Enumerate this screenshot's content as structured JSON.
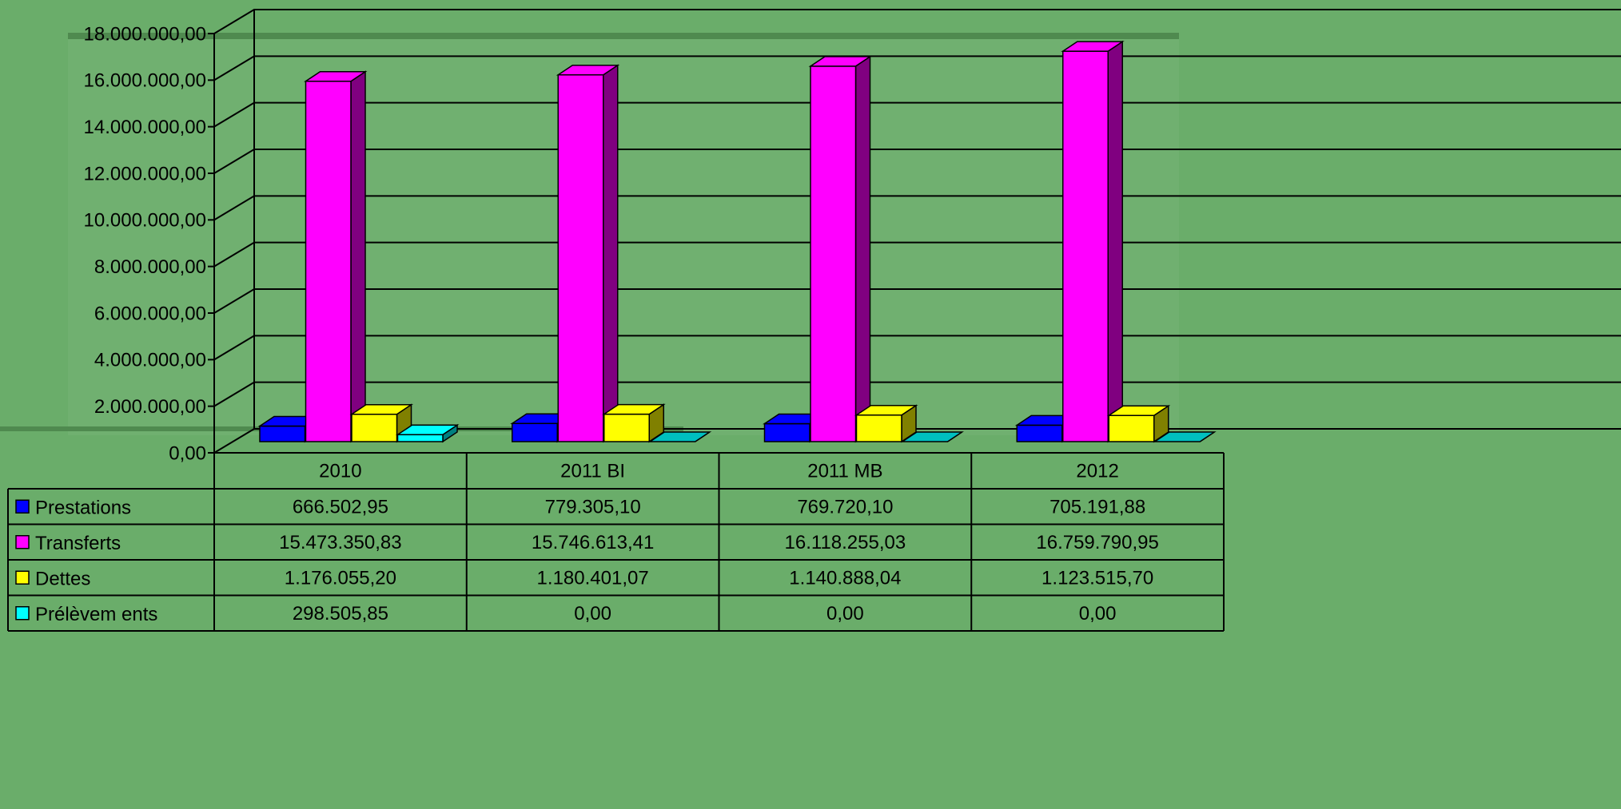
{
  "chart_data": {
    "type": "bar3d",
    "categories": [
      "2010",
      "2011 BI",
      "2011 MB",
      "2012"
    ],
    "series": [
      {
        "name": "Prestations",
        "color": "#0000ff",
        "values": [
          666502.95,
          779305.1,
          769720.1,
          705191.88
        ],
        "value_labels": [
          "666.502,95",
          "779.305,10",
          "769.720,10",
          "705.191,88"
        ]
      },
      {
        "name": "Transferts",
        "color": "#ff00ff",
        "values": [
          15473350.83,
          15746613.41,
          16118255.03,
          16759790.95
        ],
        "value_labels": [
          "15.473.350,83",
          "15.746.613,41",
          "16.118.255,03",
          "16.759.790,95"
        ]
      },
      {
        "name": "Dettes",
        "color": "#ffff00",
        "values": [
          1176055.2,
          1180401.07,
          1140888.04,
          1123515.7
        ],
        "value_labels": [
          "1.176.055,20",
          "1.180.401,07",
          "1.140.888,04",
          "1.123.515,70"
        ]
      },
      {
        "name": "Prélèvem ents",
        "color": "#00ffff",
        "values": [
          298505.85,
          0,
          0,
          0
        ],
        "value_labels": [
          "298.505,85",
          "0,00",
          "0,00",
          "0,00"
        ]
      }
    ],
    "ylim": [
      0,
      18000000
    ],
    "yticks": [
      {
        "value": 0,
        "label": "0,00"
      },
      {
        "value": 2000000,
        "label": "2.000.000,00"
      },
      {
        "value": 4000000,
        "label": "4.000.000,00"
      },
      {
        "value": 6000000,
        "label": "6.000.000,00"
      },
      {
        "value": 8000000,
        "label": "8.000.000,00"
      },
      {
        "value": 10000000,
        "label": "10.000.000,00"
      },
      {
        "value": 12000000,
        "label": "12.000.000,00"
      },
      {
        "value": 14000000,
        "label": "14.000.000,00"
      },
      {
        "value": 16000000,
        "label": "16.000.000,00"
      },
      {
        "value": 18000000,
        "label": "18.000.000,00"
      }
    ],
    "grid": true
  }
}
